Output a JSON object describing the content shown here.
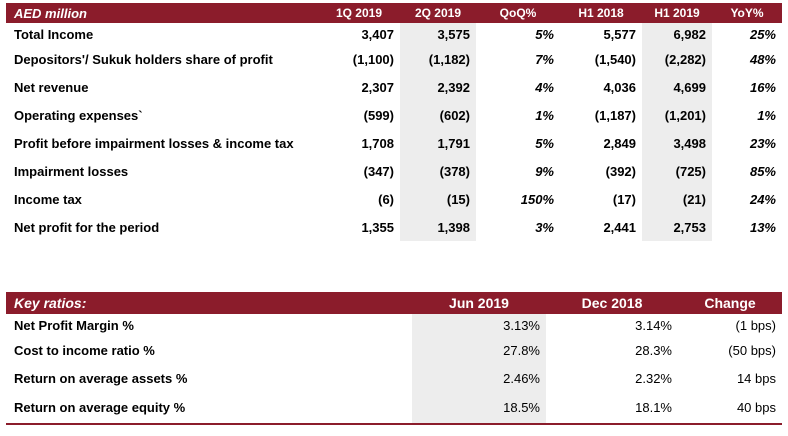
{
  "income_table": {
    "headers": [
      "AED million",
      "1Q 2019",
      "2Q 2019",
      "QoQ%",
      "H1 2018",
      "H1 2019",
      "YoY%"
    ],
    "rows": [
      {
        "label": "Total Income",
        "q1_2019": "3,407",
        "q2_2019": "3,575",
        "qoq": "5%",
        "h1_2018": "5,577",
        "h1_2019": "6,982",
        "yoy": "25%"
      },
      {
        "label": "Depositors'/ Sukuk holders share of profit",
        "q1_2019": "(1,100)",
        "q2_2019": "(1,182)",
        "qoq": "7%",
        "h1_2018": "(1,540)",
        "h1_2019": "(2,282)",
        "yoy": "48%"
      },
      {
        "label": "Net revenue",
        "q1_2019": "2,307",
        "q2_2019": "2,392",
        "qoq": "4%",
        "h1_2018": "4,036",
        "h1_2019": "4,699",
        "yoy": "16%"
      },
      {
        "label": "Operating expenses`",
        "q1_2019": "(599)",
        "q2_2019": "(602)",
        "qoq": "1%",
        "h1_2018": "(1,187)",
        "h1_2019": "(1,201)",
        "yoy": "1%"
      },
      {
        "label": "Profit before impairment losses & income tax",
        "q1_2019": "1,708",
        "q2_2019": "1,791",
        "qoq": "5%",
        "h1_2018": "2,849",
        "h1_2019": "3,498",
        "yoy": "23%"
      },
      {
        "label": "Impairment losses",
        "q1_2019": "(347)",
        "q2_2019": "(378)",
        "qoq": "9%",
        "h1_2018": "(392)",
        "h1_2019": "(725)",
        "yoy": "85%"
      },
      {
        "label": "Income tax",
        "q1_2019": "(6)",
        "q2_2019": "(15)",
        "qoq": "150%",
        "h1_2018": "(17)",
        "h1_2019": "(21)",
        "yoy": "24%"
      },
      {
        "label": "Net profit for the period",
        "q1_2019": "1,355",
        "q2_2019": "1,398",
        "qoq": "3%",
        "h1_2018": "2,441",
        "h1_2019": "2,753",
        "yoy": "13%"
      }
    ]
  },
  "ratios_table": {
    "headers": [
      "Key ratios:",
      "Jun 2019",
      "Dec 2018",
      "Change"
    ],
    "rows": [
      {
        "label": "Net Profit Margin %",
        "jun_2019": "3.13%",
        "dec_2018": "3.14%",
        "change": "(1 bps)"
      },
      {
        "label": "Cost to income ratio %",
        "jun_2019": "27.8%",
        "dec_2018": "28.3%",
        "change": "(50 bps)"
      },
      {
        "label": "Return on average assets %",
        "jun_2019": "2.46%",
        "dec_2018": "2.32%",
        "change": "14 bps"
      },
      {
        "label": "Return on average equity %",
        "jun_2019": "18.5%",
        "dec_2018": "18.1%",
        "change": "40 bps"
      }
    ]
  },
  "colors": {
    "header_bg": "#8b1c2b",
    "shade": "#ededed"
  }
}
